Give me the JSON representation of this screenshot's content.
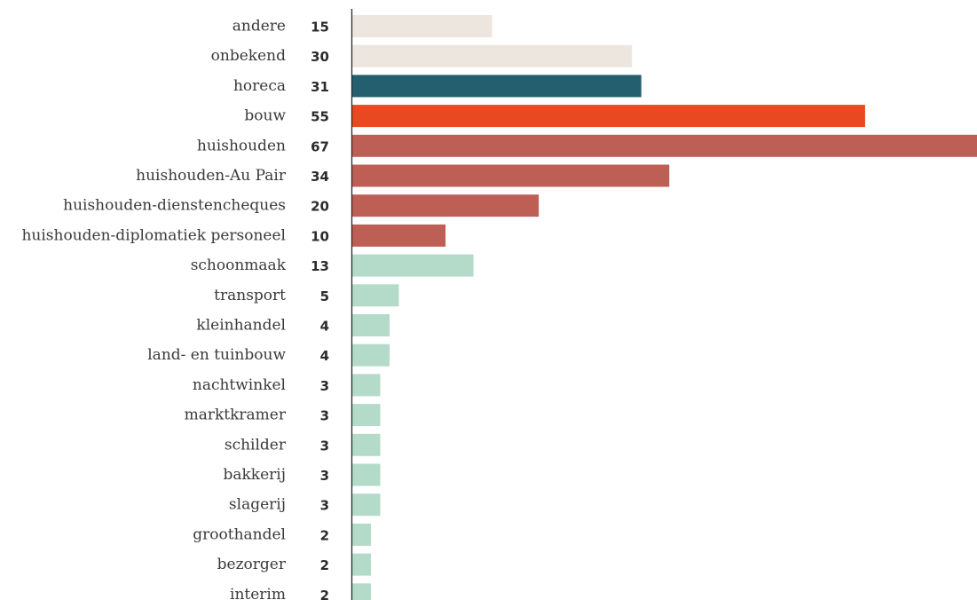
{
  "chart_data": {
    "type": "bar",
    "orientation": "horizontal",
    "title": "",
    "xlabel": "",
    "ylabel": "",
    "xlim": [
      0,
      67
    ],
    "grid": false,
    "categories": [
      "andere",
      "onbekend",
      "horeca",
      "bouw",
      "huishouden",
      "huishouden-Au Pair",
      "huishouden-dienstencheques",
      "huishouden-diplomatiek personeel",
      "schoonmaak",
      "transport",
      "kleinhandel",
      "land- en tuinbouw",
      "nachtwinkel",
      "marktkramer",
      "schilder",
      "bakkerij",
      "slagerij",
      "groothandel",
      "bezorger",
      "interim"
    ],
    "values": [
      15,
      30,
      31,
      55,
      67,
      34,
      20,
      10,
      13,
      5,
      4,
      4,
      3,
      3,
      3,
      3,
      3,
      2,
      2,
      2
    ],
    "value_labels": [
      "15",
      "30",
      "31",
      "55",
      "67",
      "34",
      "20",
      "10",
      "13",
      "5",
      "4",
      "4",
      "3",
      "3",
      "3",
      "3",
      "3",
      "2",
      "2",
      "2"
    ],
    "colors": [
      "#ede6df",
      "#ede6df",
      "#235f6e",
      "#e8491f",
      "#bd5f55",
      "#bd5f55",
      "#bd5f55",
      "#bd5f55",
      "#b4dbc9",
      "#b4dbc9",
      "#b4dbc9",
      "#b4dbc9",
      "#b4dbc9",
      "#b4dbc9",
      "#b4dbc9",
      "#b4dbc9",
      "#b4dbc9",
      "#b4dbc9",
      "#b4dbc9",
      "#b4dbc9"
    ]
  }
}
